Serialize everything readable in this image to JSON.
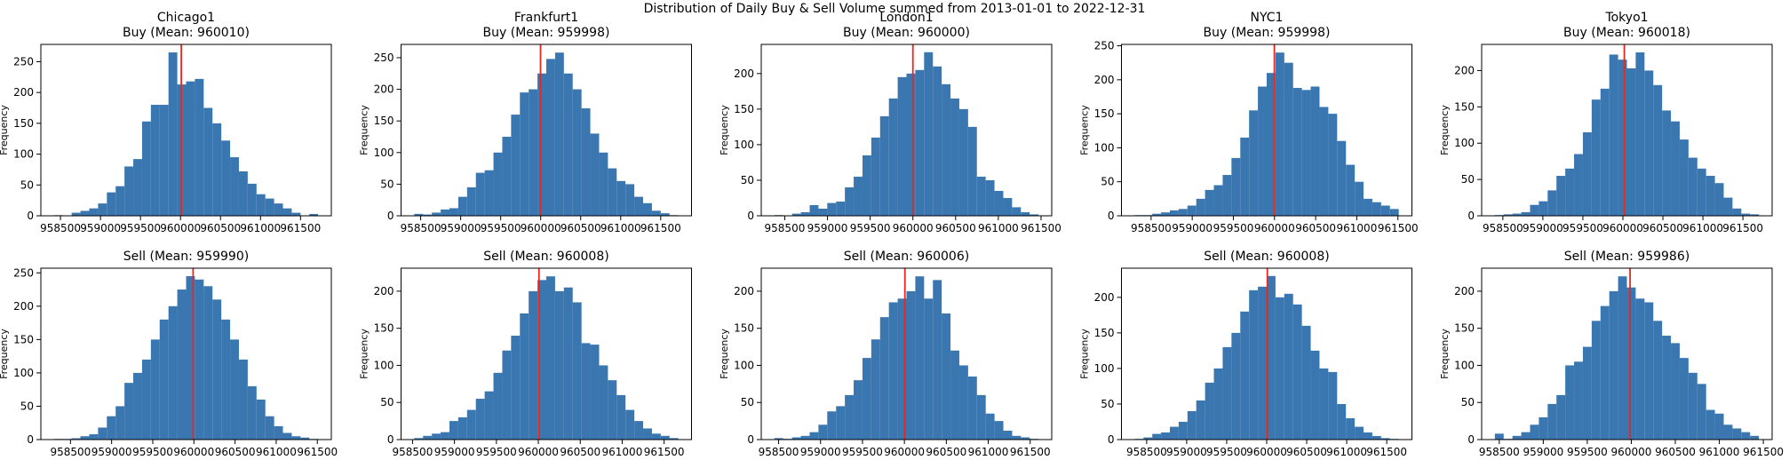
{
  "title": "Distribution of Daily Buy & Sell Volume summed from 2013-01-01 to 2022-12-31",
  "chart_data": [
    {
      "type": "histogram",
      "title": "Chicago1\nBuy (Mean: 960010)",
      "ylabel": "Frequency",
      "color": "#3a76b0",
      "mean": 960010,
      "mean_color": "#e8281e",
      "bins": [
        958420,
        958530,
        958640,
        958750,
        958860,
        958970,
        959080,
        959190,
        959300,
        959410,
        959520,
        959630,
        959740,
        959850,
        959960,
        960070,
        960180,
        960290,
        960400,
        960510,
        960620,
        960730,
        960840,
        960950,
        961060,
        961170,
        961280,
        961390,
        961500,
        961610,
        961720
      ],
      "counts": [
        1,
        0,
        5,
        8,
        12,
        20,
        38,
        48,
        80,
        92,
        153,
        180,
        180,
        265,
        213,
        218,
        222,
        175,
        150,
        122,
        95,
        72,
        52,
        35,
        28,
        20,
        12,
        5,
        0,
        3
      ],
      "xlim": [
        958255,
        961885
      ],
      "ylim": [
        0,
        278
      ],
      "xticks": [
        958500,
        959000,
        959500,
        960000,
        960500,
        961000,
        961500
      ],
      "yticks": [
        0,
        50,
        100,
        150,
        200,
        250
      ]
    },
    {
      "type": "histogram",
      "title": "Frankfurt1\nBuy (Mean: 959998)",
      "ylabel": "Frequency",
      "color": "#3a76b0",
      "mean": 959998,
      "mean_color": "#e8281e",
      "bins": [
        958420,
        958530,
        958640,
        958750,
        958860,
        958970,
        959080,
        959190,
        959300,
        959410,
        959520,
        959630,
        959740,
        959850,
        959960,
        960070,
        960180,
        960290,
        960400,
        960510,
        960620,
        960730,
        960840,
        960950,
        961060,
        961170,
        961280,
        961390,
        961500,
        961610,
        961720
      ],
      "counts": [
        3,
        2,
        5,
        10,
        12,
        30,
        45,
        68,
        72,
        100,
        125,
        160,
        195,
        200,
        225,
        248,
        258,
        225,
        200,
        170,
        130,
        100,
        75,
        55,
        50,
        30,
        20,
        8,
        4,
        1
      ],
      "xlim": [
        958255,
        961885
      ],
      "ylim": [
        0,
        271
      ],
      "xticks": [
        958500,
        959000,
        959500,
        960000,
        960500,
        961000,
        961500
      ],
      "yticks": [
        0,
        50,
        100,
        150,
        200,
        250
      ]
    },
    {
      "type": "histogram",
      "title": "London1\nBuy (Mean: 960000)",
      "ylabel": "Frequency",
      "color": "#3a76b0",
      "mean": 960000,
      "mean_color": "#e8281e",
      "bins": [
        958380,
        958483,
        958586,
        958689,
        958792,
        958895,
        958998,
        959101,
        959204,
        959307,
        959410,
        959513,
        959616,
        959719,
        959822,
        959925,
        960028,
        960131,
        960234,
        960337,
        960440,
        960543,
        960646,
        960749,
        960852,
        960955,
        961058,
        961161,
        961264,
        961367,
        961470
      ],
      "counts": [
        1,
        0,
        3,
        5,
        15,
        10,
        18,
        20,
        40,
        55,
        85,
        110,
        140,
        165,
        195,
        200,
        205,
        230,
        210,
        185,
        165,
        150,
        125,
        55,
        50,
        35,
        25,
        12,
        5,
        2
      ],
      "xlim": [
        958225,
        961625
      ],
      "ylim": [
        0,
        241
      ],
      "xticks": [
        958500,
        959000,
        959500,
        960000,
        960500,
        961000,
        961500
      ],
      "yticks": [
        0,
        50,
        100,
        150,
        200
      ]
    },
    {
      "type": "histogram",
      "title": "NYC1\nBuy (Mean: 959998)",
      "ylabel": "Frequency",
      "color": "#3a76b0",
      "mean": 959998,
      "mean_color": "#e8281e",
      "bins": [
        958300,
        958407,
        958514,
        958621,
        958728,
        958835,
        958942,
        959049,
        959156,
        959263,
        959370,
        959477,
        959584,
        959691,
        959798,
        959905,
        960012,
        960119,
        960226,
        960333,
        960440,
        960547,
        960654,
        960761,
        960868,
        960975,
        961082,
        961189,
        961296,
        961403,
        961510
      ],
      "counts": [
        1,
        1,
        3,
        5,
        8,
        10,
        15,
        25,
        38,
        45,
        60,
        85,
        115,
        155,
        190,
        210,
        240,
        225,
        188,
        185,
        190,
        160,
        150,
        110,
        75,
        50,
        25,
        20,
        15,
        10
      ],
      "xlim": [
        958140,
        961670
      ],
      "ylim": [
        0,
        252
      ],
      "xticks": [
        958500,
        959000,
        959500,
        960000,
        960500,
        961000,
        961500
      ],
      "yticks": [
        0,
        50,
        100,
        150,
        200,
        250
      ]
    },
    {
      "type": "histogram",
      "title": "Tokyo1\nBuy (Mean: 960018)",
      "ylabel": "Frequency",
      "color": "#3a76b0",
      "mean": 960018,
      "mean_color": "#e8281e",
      "bins": [
        958400,
        958510,
        958620,
        958730,
        958840,
        958950,
        959060,
        959170,
        959280,
        959390,
        959500,
        959610,
        959720,
        959830,
        959940,
        960050,
        960160,
        960270,
        960380,
        960490,
        960600,
        960710,
        960820,
        960930,
        961040,
        961150,
        961260,
        961370,
        961480,
        961590,
        961700
      ],
      "counts": [
        1,
        2,
        3,
        5,
        15,
        20,
        35,
        55,
        65,
        85,
        115,
        160,
        175,
        222,
        215,
        203,
        225,
        200,
        180,
        145,
        130,
        105,
        80,
        65,
        55,
        45,
        25,
        10,
        3,
        2
      ],
      "xlim": [
        958235,
        961865
      ],
      "ylim": [
        0,
        236
      ],
      "xticks": [
        958500,
        959000,
        959500,
        960000,
        960500,
        961000,
        961500
      ],
      "yticks": [
        0,
        50,
        100,
        150,
        200
      ]
    },
    {
      "type": "histogram",
      "title": "Sell (Mean: 959990)",
      "ylabel": "Frequency",
      "color": "#3a76b0",
      "mean": 959990,
      "mean_color": "#e8281e",
      "bins": [
        958300,
        958407,
        958514,
        958621,
        958728,
        958835,
        958942,
        959049,
        959156,
        959263,
        959370,
        959477,
        959584,
        959691,
        959798,
        959905,
        960012,
        960119,
        960226,
        960333,
        960440,
        960547,
        960654,
        960761,
        960868,
        960975,
        961082,
        961189,
        961296,
        961403,
        961510
      ],
      "counts": [
        1,
        1,
        2,
        5,
        8,
        18,
        35,
        50,
        85,
        100,
        120,
        150,
        180,
        200,
        225,
        245,
        240,
        230,
        210,
        180,
        150,
        120,
        80,
        60,
        35,
        20,
        10,
        5,
        3,
        1
      ],
      "xlim": [
        958140,
        961670
      ],
      "ylim": [
        0,
        257
      ],
      "xticks": [
        958500,
        959000,
        959500,
        960000,
        960500,
        961000,
        961500
      ],
      "yticks": [
        0,
        50,
        100,
        150,
        200,
        250
      ]
    },
    {
      "type": "histogram",
      "title": "Sell (Mean: 960008)",
      "ylabel": "Frequency",
      "color": "#3a76b0",
      "mean": 960008,
      "mean_color": "#e8281e",
      "bins": [
        958520,
        958625,
        958730,
        958835,
        958940,
        959045,
        959150,
        959255,
        959360,
        959465,
        959570,
        959675,
        959780,
        959885,
        959990,
        960095,
        960200,
        960305,
        960410,
        960515,
        960620,
        960725,
        960830,
        960935,
        961040,
        961145,
        961250,
        961355,
        961460,
        961565,
        961670
      ],
      "counts": [
        2,
        5,
        8,
        10,
        25,
        30,
        40,
        55,
        65,
        90,
        120,
        140,
        170,
        200,
        215,
        220,
        200,
        205,
        185,
        130,
        128,
        100,
        80,
        60,
        40,
        25,
        15,
        8,
        5,
        2
      ],
      "xlim": [
        958363,
        961827
      ],
      "ylim": [
        0,
        231
      ],
      "xticks": [
        958500,
        959000,
        959500,
        960000,
        960500,
        961000,
        961500
      ],
      "yticks": [
        0,
        50,
        100,
        150,
        200
      ]
    },
    {
      "type": "histogram",
      "title": "Sell (Mean: 960006)",
      "ylabel": "Frequency",
      "color": "#3a76b0",
      "mean": 960006,
      "mean_color": "#e8281e",
      "bins": [
        958450,
        958555,
        958660,
        958765,
        958870,
        958975,
        959080,
        959185,
        959290,
        959395,
        959500,
        959605,
        959710,
        959815,
        959920,
        960025,
        960130,
        960235,
        960340,
        960445,
        960550,
        960655,
        960760,
        960865,
        960970,
        961075,
        961180,
        961285,
        961390,
        961495,
        961600
      ],
      "counts": [
        2,
        1,
        3,
        5,
        10,
        20,
        38,
        45,
        60,
        80,
        110,
        135,
        165,
        185,
        190,
        200,
        220,
        190,
        215,
        170,
        120,
        100,
        85,
        60,
        35,
        25,
        12,
        5,
        3,
        1
      ],
      "xlim": [
        958293,
        961757
      ],
      "ylim": [
        0,
        231
      ],
      "xticks": [
        958500,
        959000,
        959500,
        960000,
        960500,
        961000,
        961500
      ],
      "yticks": [
        0,
        50,
        100,
        150,
        200
      ]
    },
    {
      "type": "histogram",
      "title": "Sell (Mean: 960008)",
      "ylabel": "Frequency",
      "color": "#3a76b0",
      "mean": 960008,
      "mean_color": "#e8281e",
      "bins": [
        958350,
        958460,
        958570,
        958680,
        958790,
        958900,
        959010,
        959120,
        959230,
        959340,
        959450,
        959560,
        959670,
        959780,
        959890,
        960000,
        960110,
        960220,
        960330,
        960440,
        960550,
        960660,
        960770,
        960880,
        960990,
        961100,
        961210,
        961320,
        961430,
        961540,
        961650
      ],
      "counts": [
        1,
        3,
        8,
        10,
        18,
        25,
        40,
        55,
        80,
        100,
        130,
        150,
        180,
        210,
        215,
        230,
        200,
        205,
        190,
        160,
        125,
        100,
        95,
        50,
        30,
        18,
        10,
        5,
        2,
        1
      ],
      "xlim": [
        958185,
        961815
      ],
      "ylim": [
        0,
        241
      ],
      "xticks": [
        958500,
        959000,
        959500,
        960000,
        960500,
        961000,
        961500
      ],
      "yticks": [
        0,
        50,
        100,
        150,
        200
      ]
    },
    {
      "type": "histogram",
      "title": "Sell (Mean: 959986)",
      "ylabel": "Frequency",
      "color": "#3a76b0",
      "mean": 959986,
      "mean_color": "#e8281e",
      "bins": [
        958450,
        958550,
        958650,
        958750,
        958850,
        958950,
        959050,
        959150,
        959250,
        959350,
        959450,
        959550,
        959650,
        959750,
        959850,
        959950,
        960050,
        960150,
        960250,
        960350,
        960450,
        960550,
        960650,
        960750,
        960850,
        960950,
        961050,
        961150,
        961250,
        961350,
        961450
      ],
      "counts": [
        8,
        1,
        5,
        10,
        20,
        30,
        48,
        60,
        100,
        105,
        125,
        160,
        180,
        200,
        220,
        205,
        190,
        185,
        160,
        140,
        130,
        110,
        90,
        75,
        40,
        35,
        20,
        15,
        10,
        5
      ],
      "xlim": [
        958300,
        961600
      ],
      "ylim": [
        0,
        231
      ],
      "xticks": [
        958500,
        959000,
        959500,
        960000,
        960500,
        961000,
        961500
      ],
      "yticks": [
        0,
        50,
        100,
        150,
        200
      ]
    }
  ]
}
